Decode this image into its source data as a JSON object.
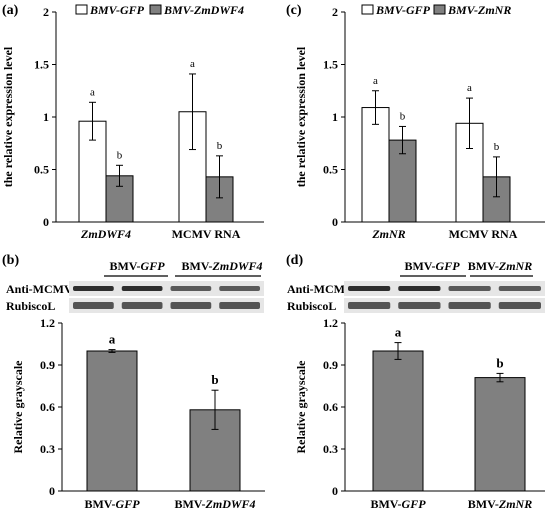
{
  "chart_data": [
    {
      "panel": "(a)",
      "type": "bar",
      "categories": [
        "ZmDWF4",
        "MCMV RNA"
      ],
      "series": [
        {
          "name": "BMV-GFP",
          "color": "#ffffff",
          "values": [
            0.96,
            1.05
          ],
          "errors": [
            0.18,
            0.36
          ],
          "sig": [
            "a",
            "a"
          ]
        },
        {
          "name": "BMV-ZmDWF4",
          "color": "#808080",
          "values": [
            0.44,
            0.43
          ],
          "errors": [
            0.1,
            0.2
          ],
          "sig": [
            "b",
            "b"
          ]
        }
      ],
      "ylabel": "the relative expression level",
      "ylim": [
        0,
        2
      ],
      "yticks": [
        "0",
        "0.5",
        "1",
        "1.5",
        "2"
      ],
      "category_italic": [
        true,
        false
      ],
      "legend_italic": true,
      "legend": "top"
    },
    {
      "panel": "(c)",
      "type": "bar",
      "categories": [
        "ZmNR",
        "MCMV RNA"
      ],
      "series": [
        {
          "name": "BMV-GFP",
          "color": "#ffffff",
          "values": [
            1.09,
            0.94
          ],
          "errors": [
            0.16,
            0.24
          ],
          "sig": [
            "a",
            "a"
          ]
        },
        {
          "name": "BMV-ZmNR",
          "color": "#808080",
          "values": [
            0.78,
            0.43
          ],
          "errors": [
            0.13,
            0.19
          ],
          "sig": [
            "b",
            "b"
          ]
        }
      ],
      "ylabel": "the relative expression level",
      "ylim": [
        0,
        2
      ],
      "yticks": [
        "0",
        "0.5",
        "1",
        "1.5",
        "2"
      ],
      "category_italic": [
        true,
        false
      ],
      "legend_italic": true,
      "legend": "top"
    },
    {
      "panel": "(b)",
      "type": "bar",
      "categories": [
        {
          "prefix": "BMV-",
          "italic": "GFP"
        },
        {
          "prefix": "BMV-",
          "italic": "ZmDWF4"
        }
      ],
      "values": [
        1.0,
        0.58
      ],
      "errors": [
        0.01,
        0.14
      ],
      "sig": [
        "a",
        "b"
      ],
      "color": "#808080",
      "ylabel": "Relative grayscale",
      "ylim": [
        0,
        1.2
      ],
      "yticks": [
        "0",
        "0.3",
        "0.6",
        "0.9",
        "1.2"
      ],
      "blot": {
        "headers": [
          {
            "prefix": "BMV-",
            "italic": "GFP"
          },
          {
            "prefix": "BMV-",
            "italic": "ZmDWF4"
          }
        ],
        "rows": [
          "Anti-MCMV-CP",
          "RubiscoL"
        ]
      }
    },
    {
      "panel": "(d)",
      "type": "bar",
      "categories": [
        {
          "prefix": "BMV-",
          "italic": "GFP"
        },
        {
          "prefix": "BMV-",
          "italic": "ZmNR"
        }
      ],
      "values": [
        1.0,
        0.81
      ],
      "errors": [
        0.06,
        0.03
      ],
      "sig": [
        "a",
        "b"
      ],
      "color": "#808080",
      "ylabel": "Relative grayscale",
      "ylim": [
        0,
        1.2
      ],
      "yticks": [
        "0",
        "0.3",
        "0.6",
        "0.9",
        "1.2"
      ],
      "blot": {
        "headers": [
          {
            "prefix": "BMV-",
            "italic": "GFP"
          },
          {
            "prefix": "BMV-",
            "italic": "ZmNR"
          }
        ],
        "rows": [
          "Anti-MCMV-CP",
          "RubiscoL"
        ]
      }
    }
  ]
}
